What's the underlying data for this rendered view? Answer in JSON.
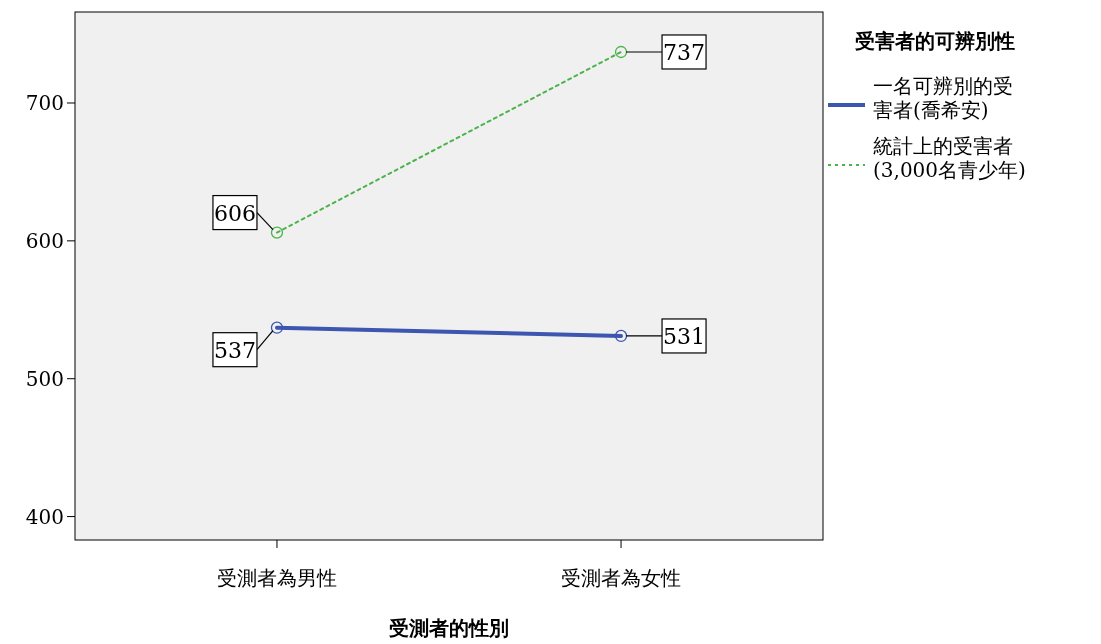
{
  "chart_data": {
    "type": "line",
    "xlabel": "受測者的性別",
    "legend_title": "受害者的可辨別性",
    "categories": [
      "受測者為男性",
      "受測者為女性"
    ],
    "series": [
      {
        "name": "一名可辨別的受害者(喬希安)",
        "color": "#3d56b0",
        "values": [
          537,
          531
        ],
        "line_style": "solid"
      },
      {
        "name": "統計上的受害者(3,000名青少年)",
        "color": "#4cb34c",
        "values": [
          606,
          737
        ],
        "line_style": "dotted"
      }
    ],
    "ylim": [
      383,
      766
    ],
    "yticks": [
      400,
      500,
      600,
      700
    ],
    "grid": false,
    "legend": "right",
    "marker": "circle",
    "data_labels": true
  }
}
